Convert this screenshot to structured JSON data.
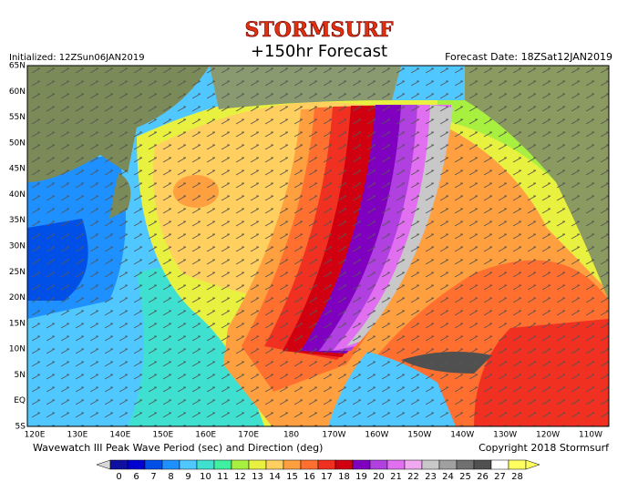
{
  "header": {
    "logo": "STORMSURF",
    "title": "+150hr Forecast",
    "initialized": "Initialized: 12ZSun06JAN2019",
    "forecast_date": "Forecast Date: 18ZSat12JAN2019"
  },
  "map": {
    "lat_labels": [
      "65N",
      "60N",
      "55N",
      "50N",
      "45N",
      "40N",
      "35N",
      "30N",
      "25N",
      "20N",
      "15N",
      "10N",
      "5N",
      "EQ",
      "5S"
    ],
    "lon_labels": [
      "120E",
      "130E",
      "140E",
      "150E",
      "160E",
      "170E",
      "180",
      "170W",
      "160W",
      "150W",
      "140W",
      "130W",
      "120W",
      "110W"
    ]
  },
  "footer": {
    "caption": "Wavewatch III Peak Wave Period (sec) and Direction (deg)",
    "copyright": "Copyright 2018 Stormsurf"
  },
  "colorbar": {
    "ticks": [
      0,
      6,
      7,
      8,
      9,
      10,
      11,
      12,
      13,
      14,
      15,
      16,
      17,
      18,
      19,
      20,
      21,
      22,
      23,
      24,
      25,
      26,
      27,
      28
    ],
    "colors": [
      "#1010a0",
      "#0000d0",
      "#0050e8",
      "#1e90ff",
      "#50c8ff",
      "#40e0d0",
      "#40f0a0",
      "#a8f040",
      "#e8f040",
      "#ffd060",
      "#ffa040",
      "#ff7030",
      "#f03020",
      "#d00010",
      "#8000c0",
      "#b040e0",
      "#e070f0",
      "#f0a8f0",
      "#c8c8c8",
      "#a0a0a0",
      "#707070",
      "#505050",
      "#ffffff",
      "#ffff60"
    ],
    "under_color": "#d8d8d8",
    "over_color": "#ffff60"
  }
}
